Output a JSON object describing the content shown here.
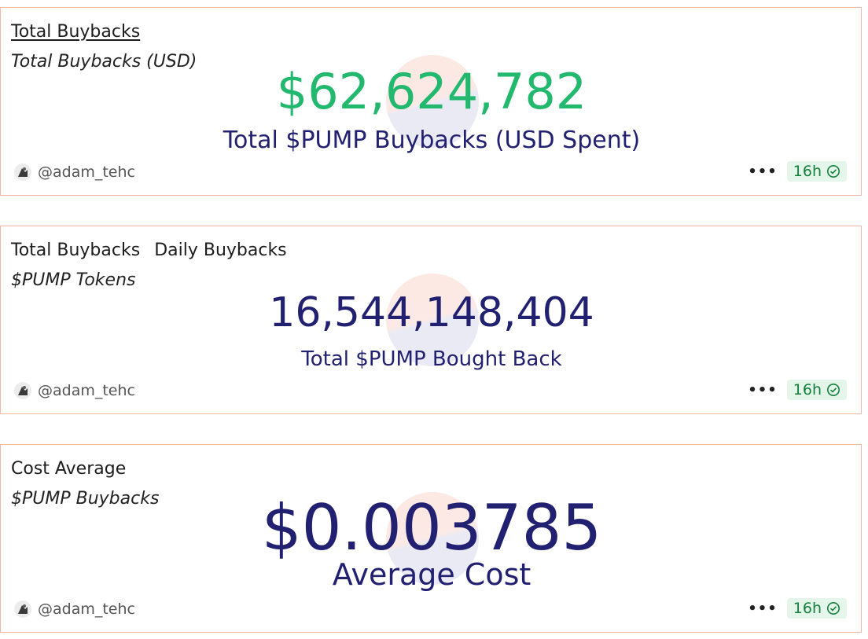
{
  "colors": {
    "border": "#f4b7a3",
    "green_value": "#22b86e",
    "navy": "#222070",
    "badge_bg": "#e4f5ea",
    "badge_text": "#15803d"
  },
  "cards": [
    {
      "tabs": [
        "Total Buybacks"
      ],
      "subtitle": "Total Buybacks (USD)",
      "value": "$62,624,782",
      "caption": "Total $PUMP Buybacks (USD Spent)",
      "author": "@adam_tehc",
      "age": "16h"
    },
    {
      "tabs": [
        "Total Buybacks",
        "Daily Buybacks"
      ],
      "subtitle": "$PUMP Tokens",
      "value": "16,544,148,404",
      "caption": "Total $PUMP Bought Back",
      "author": "@adam_tehc",
      "age": "16h"
    },
    {
      "tabs": [
        "Cost Average"
      ],
      "subtitle": "$PUMP Buybacks",
      "value": "$0.003785",
      "caption": "Average Cost",
      "author": "@adam_tehc",
      "age": "16h"
    }
  ],
  "icons": {
    "more": "ellipsis-icon",
    "verified": "check-circle-icon",
    "avatar": "user-avatar"
  }
}
